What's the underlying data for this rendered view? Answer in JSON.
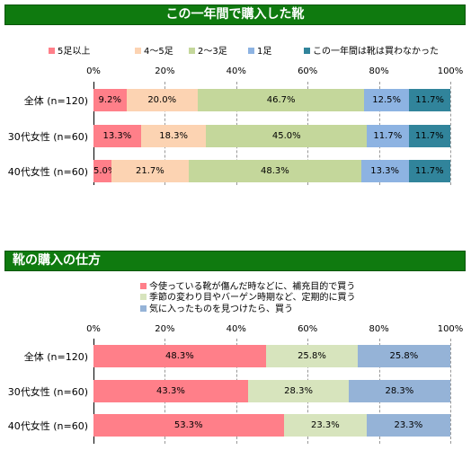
{
  "chart_data": [
    {
      "type": "bar",
      "stacked": true,
      "orientation": "horizontal",
      "title": "この一年間で購入した靴",
      "categories": [
        "全体 (n=120)",
        "30代女性 (n=60)",
        "40代女性 (n=60)"
      ],
      "xlim": [
        0,
        100
      ],
      "ticks": [
        "0%",
        "20%",
        "40%",
        "60%",
        "80%",
        "100%"
      ],
      "legend_position": "top",
      "series": [
        {
          "name": "5足以上",
          "color": "#ff7f89",
          "values": [
            9.2,
            13.3,
            5.0
          ],
          "labels": [
            "9.2%",
            "13.3%",
            "5.0%"
          ]
        },
        {
          "name": "4～5足",
          "color": "#fcd3b2",
          "values": [
            20.0,
            18.3,
            21.7
          ],
          "labels": [
            "20.0%",
            "18.3%",
            "21.7%"
          ]
        },
        {
          "name": "2～3足",
          "color": "#c4d79b",
          "values": [
            46.7,
            45.0,
            48.3
          ],
          "labels": [
            "46.7%",
            "45.0%",
            "48.3%"
          ]
        },
        {
          "name": "1足",
          "color": "#8db3e2",
          "values": [
            12.5,
            11.7,
            13.3
          ],
          "labels": [
            "12.5%",
            "11.7%",
            "13.3%"
          ]
        },
        {
          "name": "この一年間は靴は買わなかった",
          "color": "#31849b",
          "values": [
            11.7,
            11.7,
            11.7
          ],
          "labels": [
            "11.7%",
            "11.7%",
            "11.7%"
          ]
        }
      ]
    },
    {
      "type": "bar",
      "stacked": true,
      "orientation": "horizontal",
      "title": "靴の購入の仕方",
      "categories": [
        "全体 (n=120)",
        "30代女性 (n=60)",
        "40代女性 (n=60)"
      ],
      "xlim": [
        0,
        100
      ],
      "ticks": [
        "0%",
        "20%",
        "40%",
        "60%",
        "80%",
        "100%"
      ],
      "legend_position": "top",
      "series": [
        {
          "name": "今使っている靴が傷んだ時などに、補充目的で買う",
          "color": "#ff7f89",
          "values": [
            48.3,
            43.3,
            53.3
          ],
          "labels": [
            "48.3%",
            "43.3%",
            "53.3%"
          ]
        },
        {
          "name": "季節の変わり目やバーゲン時期など、定期的に買う",
          "color": "#d7e4bd",
          "values": [
            25.8,
            28.3,
            23.3
          ],
          "labels": [
            "25.8%",
            "28.3%",
            "23.3%"
          ]
        },
        {
          "name": "気に入ったものを見つけたら、買う",
          "color": "#95b3d7",
          "values": [
            25.8,
            28.3,
            23.3
          ],
          "labels": [
            "25.8%",
            "28.3%",
            "23.3%"
          ]
        }
      ]
    }
  ]
}
